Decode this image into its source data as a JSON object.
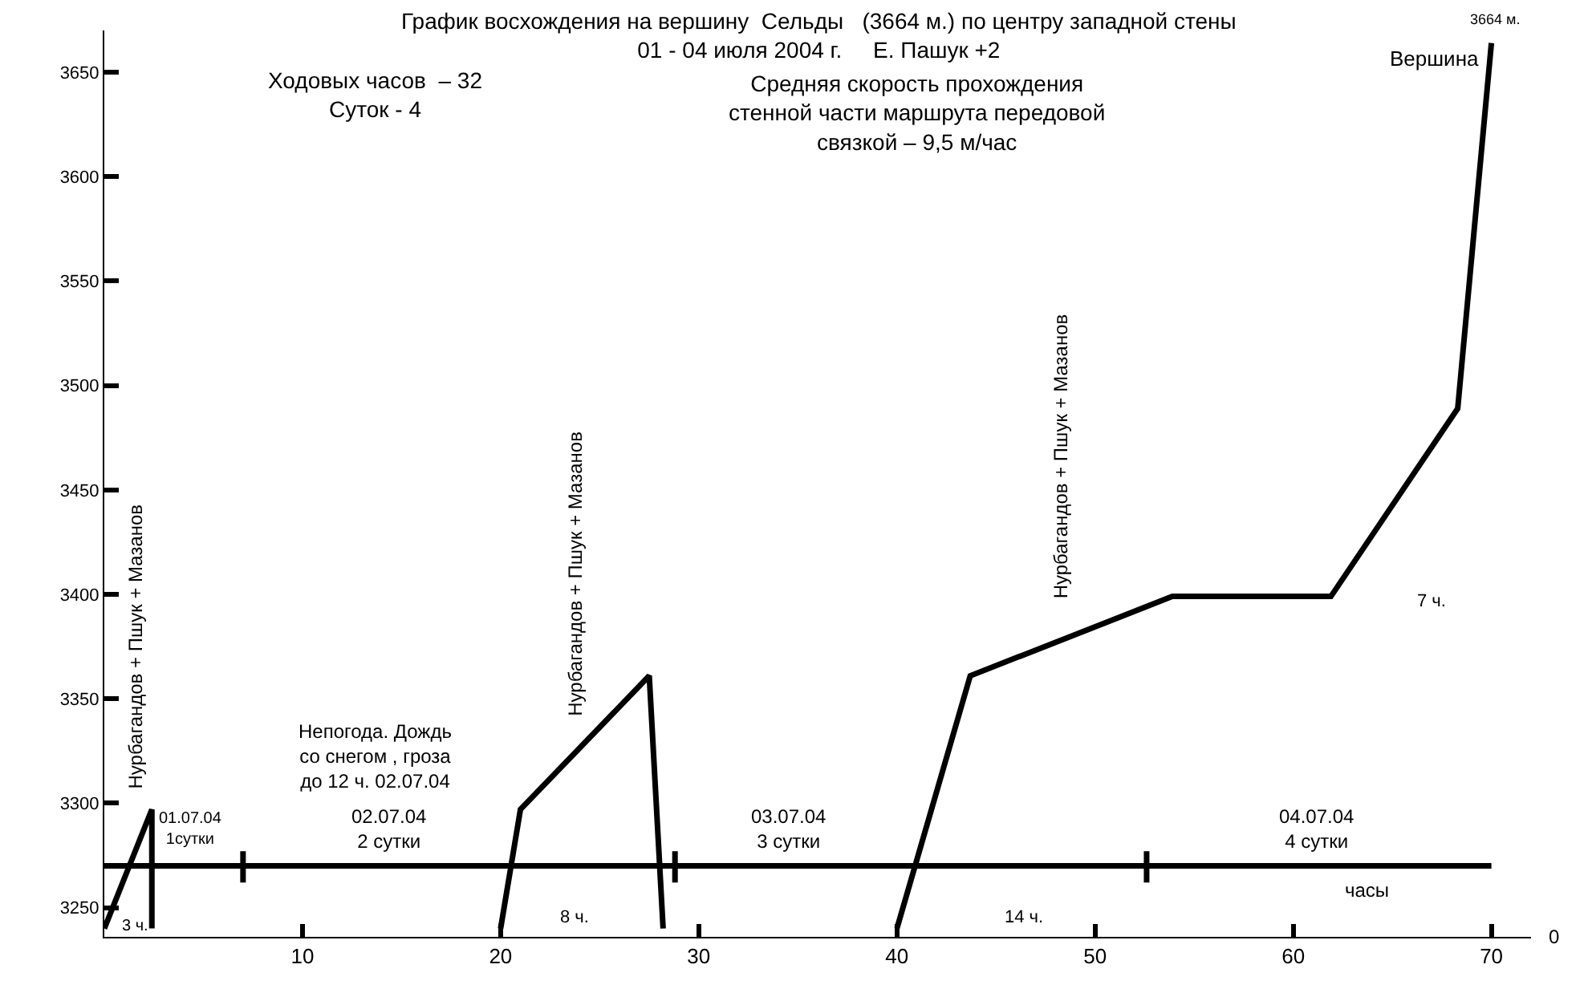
{
  "chart_data": {
    "type": "line",
    "title": "График восхождения на вершину  Сельды   (3664 м.) по центру западной стены",
    "subtitle": "01 - 04 июля 2004 г.     Е. Пашук +2",
    "xlabel": "часы",
    "xlim": [
      0,
      72
    ],
    "xticks": [
      10,
      20,
      30,
      40,
      50,
      60,
      70
    ],
    "ylim": [
      3236,
      3670
    ],
    "yticks": [
      3250,
      3300,
      3350,
      3400,
      3450,
      3500,
      3550,
      3600,
      3650
    ],
    "marker": "none",
    "line_style": "solid",
    "series": [
      {
        "color": "#000000",
        "x": [
          0,
          2.4,
          2.4
        ],
        "values": [
          3240,
          3297,
          3240
        ]
      },
      {
        "color": "#000000",
        "x": [
          20,
          21,
          27.5,
          28.2
        ],
        "values": [
          3240,
          3297,
          3361,
          3240
        ]
      },
      {
        "color": "#000000",
        "x": [
          40,
          43.7,
          53.9,
          61.9,
          68.3,
          70
        ],
        "values": [
          3240,
          3361,
          3399,
          3399,
          3489,
          3664
        ]
      },
      {
        "color": "#000000",
        "x": [
          0,
          70
        ],
        "values": [
          3270,
          3270
        ]
      },
      {
        "color": "#000000",
        "x": [
          7,
          7
        ],
        "values": [
          3262,
          3277
        ]
      },
      {
        "color": "#000000",
        "x": [
          28.8,
          28.8
        ],
        "values": [
          3262,
          3277
        ]
      },
      {
        "color": "#000000",
        "x": [
          52.6,
          52.6
        ],
        "values": [
          3262,
          3277
        ]
      }
    ],
    "annotations": [
      "Ходовых часов  – 32\nСуток - 4",
      "Средняя скорость прохождения\nстенной части маршрута передовой\nсвязкой – 9,5 м/час",
      "Нурбагандов + Пшук + Мазанов",
      "Нурбагандов + Пшук + Мазанов",
      "Нурбагандов + Пшук + Мазанов",
      "Непогода. Дождь\nсо снегом , гроза\nдо 12 ч. 02.07.04",
      "01.07.04\n1сутки",
      "02.07.04\n2 сутки",
      "03.07.04\n3 сутки",
      "04.07.04\n4 сутки",
      "3 ч.",
      "8 ч.",
      "14 ч.",
      "7 ч.",
      {
        "text": "Вершина",
        "x": 70,
        "y": 3664
      },
      "3664 м.",
      "0"
    ]
  }
}
